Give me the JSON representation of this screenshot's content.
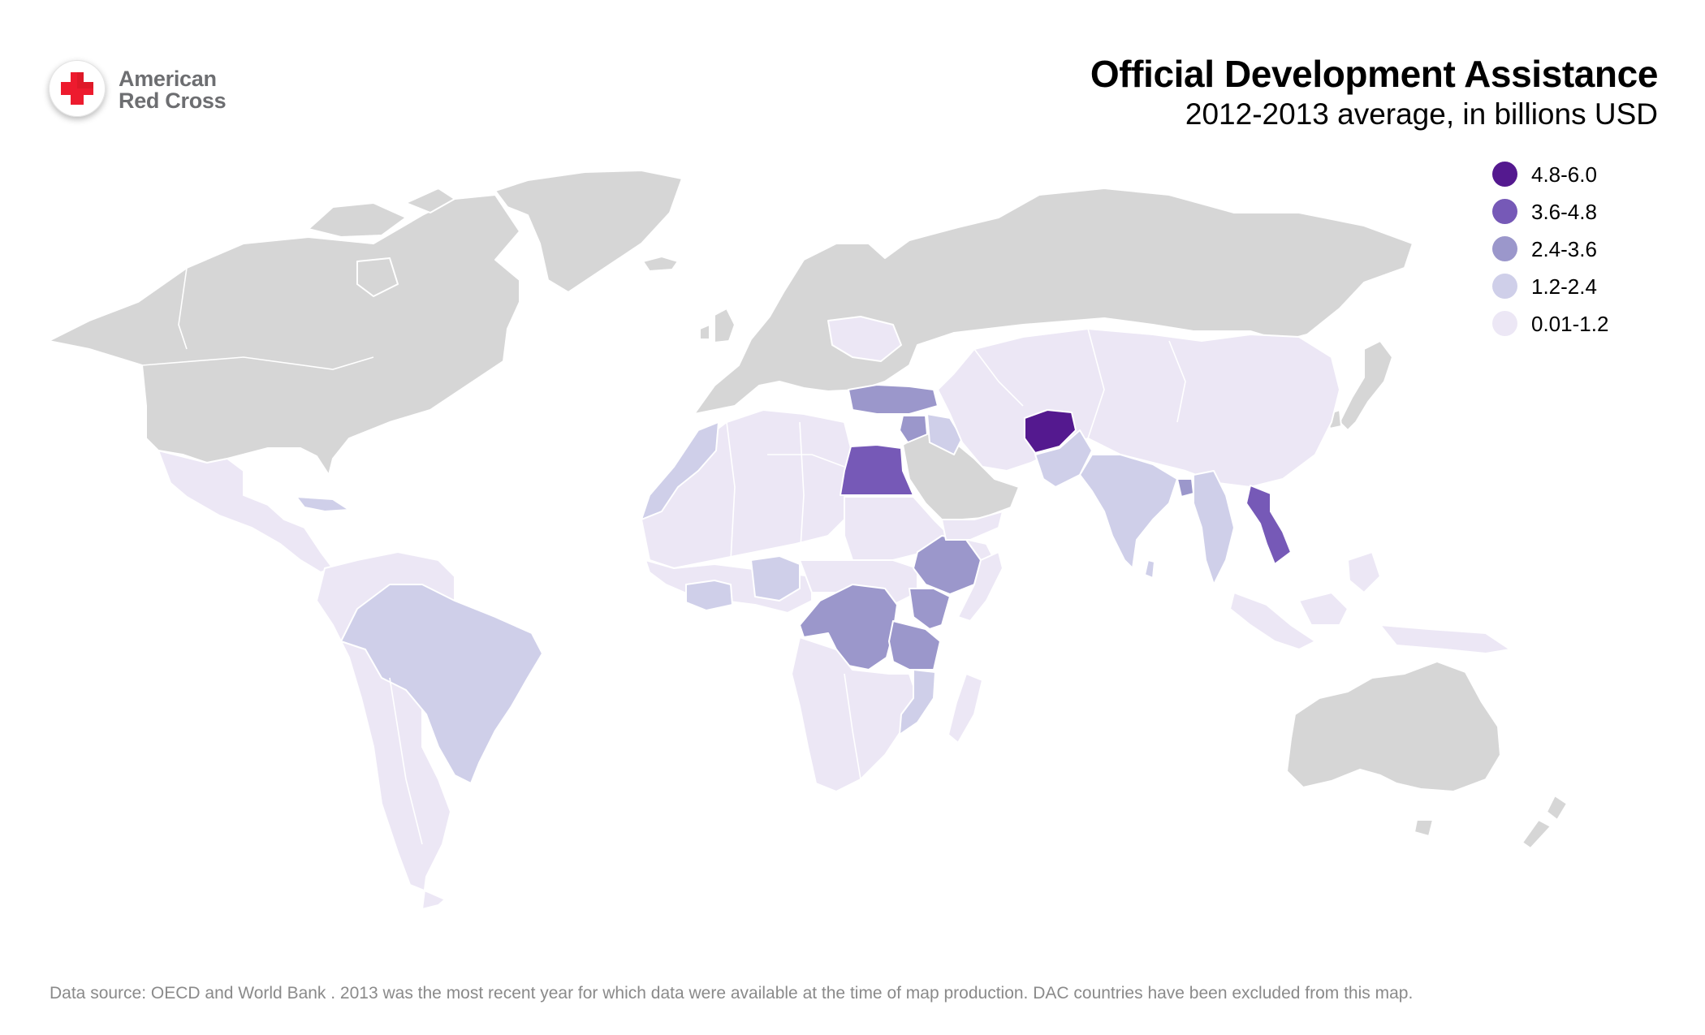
{
  "logo": {
    "line1": "American",
    "line2": "Red Cross",
    "cross_color": "#ed1b2e",
    "text_color": "#6d6e71"
  },
  "title": "Official Development Assistance",
  "subtitle": "2012-2013 average, in billions USD",
  "legend": [
    {
      "label": "4.8-6.0",
      "color": "#54198f"
    },
    {
      "label": "3.6-4.8",
      "color": "#7659b7"
    },
    {
      "label": "2.4-3.6",
      "color": "#9b97cb"
    },
    {
      "label": "1.2-2.4",
      "color": "#cfcfe9"
    },
    {
      "label": "0.01-1.2",
      "color": "#ece7f5"
    }
  ],
  "no_data_color": "#d6d6d6",
  "footnote": "Data source: OECD and World Bank . 2013 was the most recent year for which data were available at the time of map production. DAC countries have been excluded from this map."
}
